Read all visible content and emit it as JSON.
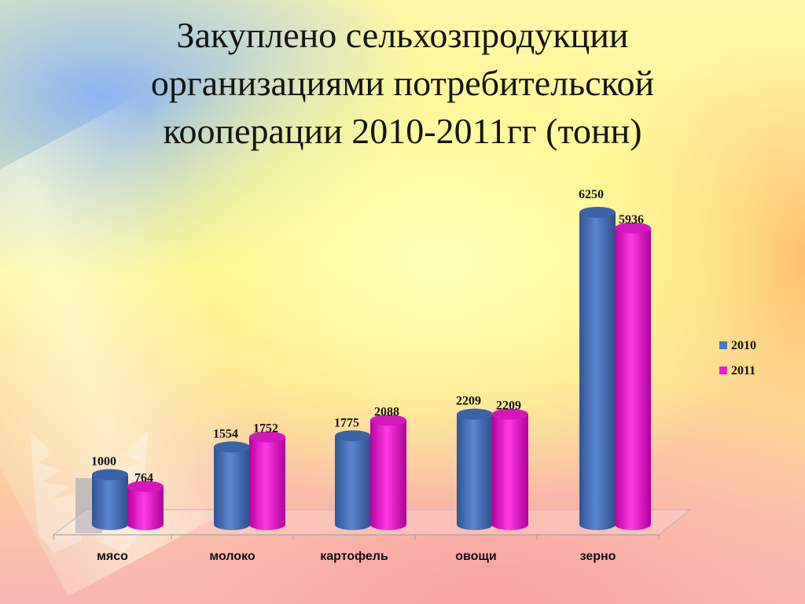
{
  "slide": {
    "title_lines": [
      "Закуплено сельхозпродукции",
      "организациями потребительской",
      "кооперации 2010-2011гг (тонн)"
    ]
  },
  "chart_data": {
    "type": "bar",
    "categories": [
      "мясо",
      "молоко",
      "картофель",
      "овощи",
      "зерно"
    ],
    "series": [
      {
        "name": "2010",
        "values": [
          1000,
          1554,
          1775,
          2209,
          6250
        ],
        "color": "#4a76bf"
      },
      {
        "name": "2011",
        "values": [
          764,
          1752,
          2088,
          2209,
          5936
        ],
        "color": "#ee1fd2"
      }
    ],
    "ylim": [
      0,
      6250
    ],
    "grid": false,
    "legend_position": "right",
    "style": "3d cylinder"
  }
}
